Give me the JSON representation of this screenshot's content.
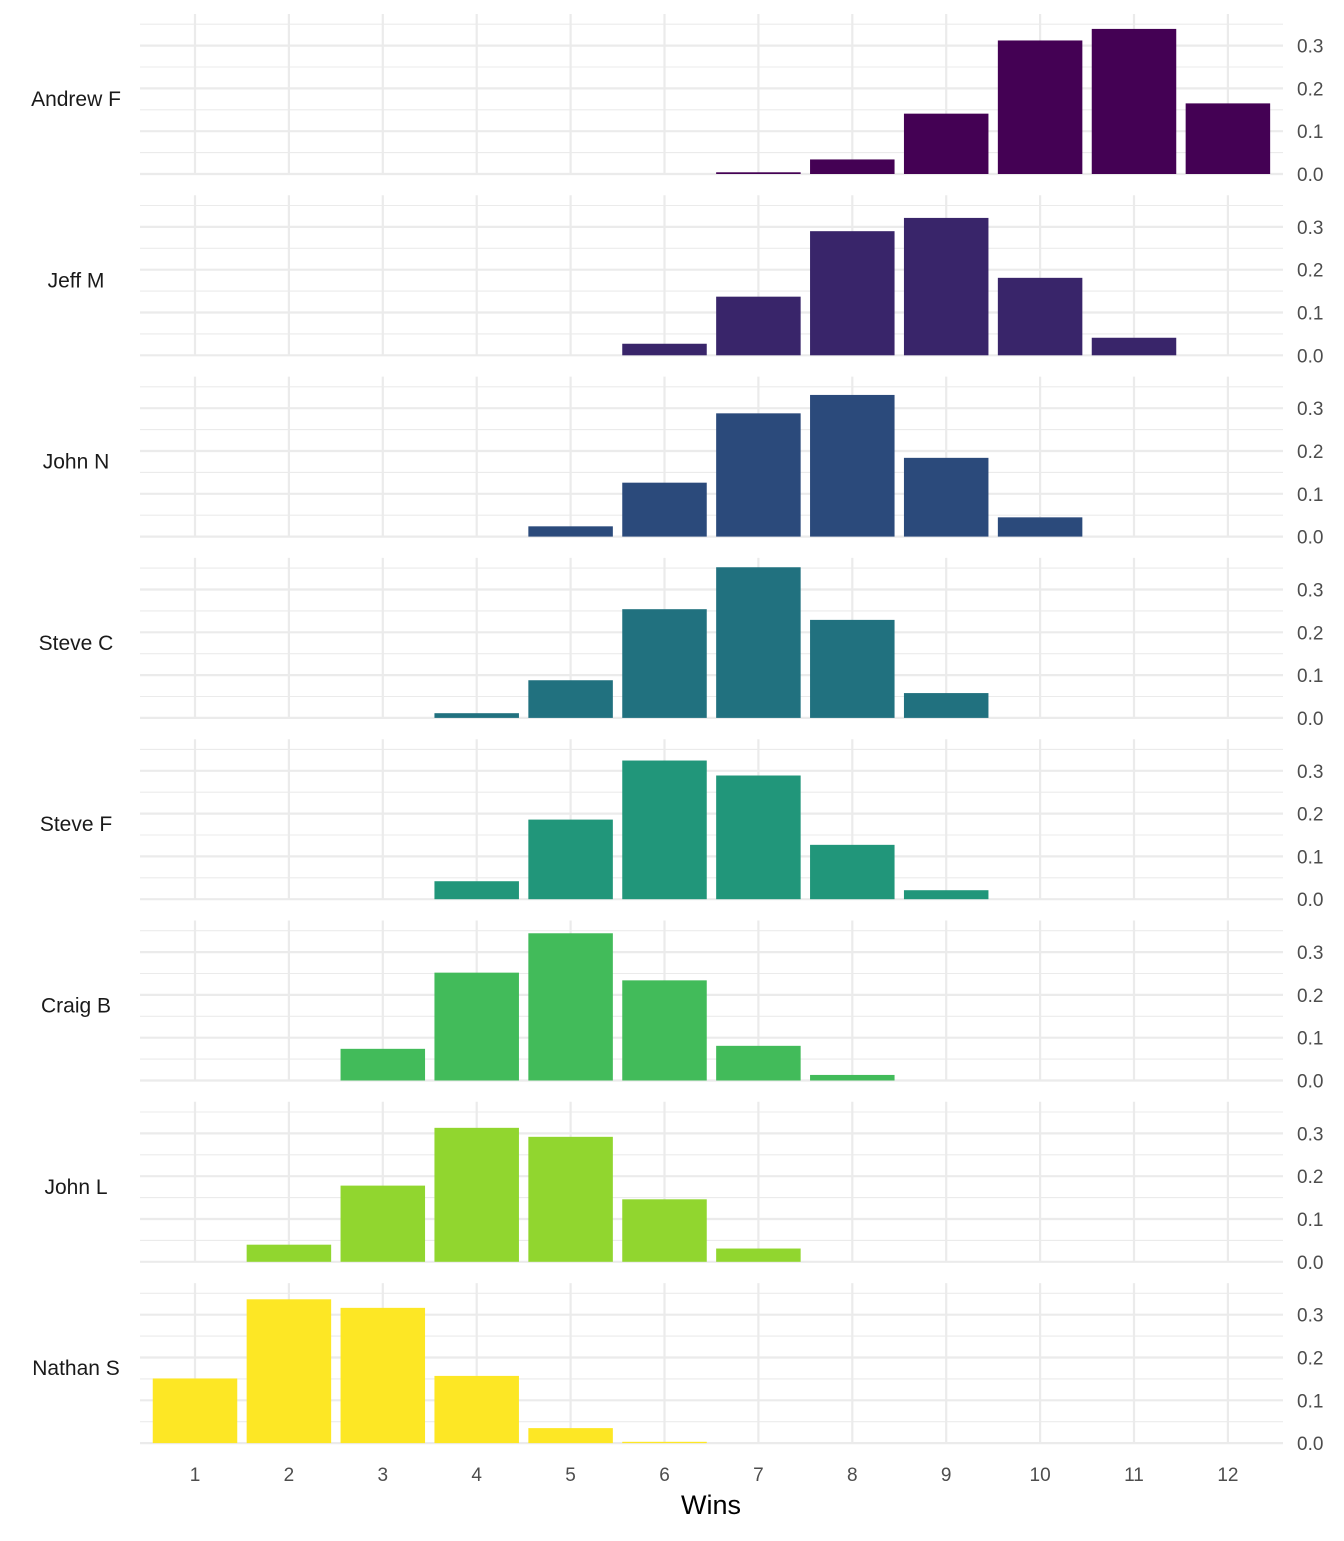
{
  "chart_data": {
    "type": "bar",
    "layout": "faceted rows, one panel per person, shared x axis, y axis on right",
    "xlabel": "Wins",
    "ylabel": "",
    "x": [
      1,
      2,
      3,
      4,
      5,
      6,
      7,
      8,
      9,
      10,
      11,
      12
    ],
    "x_tick_labels": [
      "1",
      "2",
      "3",
      "4",
      "5",
      "6",
      "7",
      "8",
      "9",
      "10",
      "11",
      "12"
    ],
    "y_tick_values": [
      0.0,
      0.1,
      0.2,
      0.3
    ],
    "y_tick_labels": [
      "0.0",
      "0.1",
      "0.2",
      "0.3"
    ],
    "ylim": [
      0,
      0.35
    ],
    "grid": true,
    "legend": "none",
    "series": [
      {
        "name": "Andrew F",
        "color": "#440154",
        "values": [
          0,
          0,
          0,
          0,
          0,
          0,
          0.004,
          0.034,
          0.141,
          0.312,
          0.339,
          0.165
        ]
      },
      {
        "name": "Jeff M",
        "color": "#39256A",
        "values": [
          0,
          0,
          0,
          0,
          0,
          0.027,
          0.137,
          0.29,
          0.321,
          0.181,
          0.041,
          0
        ]
      },
      {
        "name": "John N",
        "color": "#2B4A7B",
        "values": [
          0,
          0,
          0,
          0,
          0.024,
          0.126,
          0.288,
          0.331,
          0.184,
          0.045,
          0,
          0
        ]
      },
      {
        "name": "Steve C",
        "color": "#21717F",
        "values": [
          0,
          0,
          0,
          0.011,
          0.088,
          0.254,
          0.352,
          0.229,
          0.058,
          0,
          0,
          0
        ]
      },
      {
        "name": "Steve F",
        "color": "#21967A",
        "values": [
          0,
          0,
          0,
          0.042,
          0.186,
          0.324,
          0.289,
          0.127,
          0.021,
          0,
          0,
          0
        ]
      },
      {
        "name": "Craig B",
        "color": "#42BB5A",
        "values": [
          0,
          0,
          0.074,
          0.252,
          0.344,
          0.234,
          0.081,
          0.013,
          0,
          0,
          0,
          0
        ]
      },
      {
        "name": "John L",
        "color": "#91D62F",
        "values": [
          0,
          0.04,
          0.178,
          0.313,
          0.292,
          0.146,
          0.031,
          0,
          0,
          0,
          0,
          0
        ]
      },
      {
        "name": "Nathan S",
        "color": "#FDE725",
        "values": [
          0.151,
          0.336,
          0.316,
          0.157,
          0.035,
          0.003,
          0,
          0,
          0,
          0,
          0,
          0
        ]
      }
    ]
  }
}
